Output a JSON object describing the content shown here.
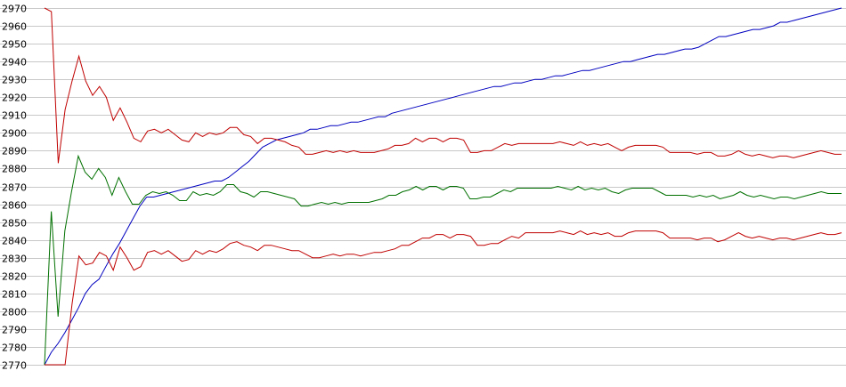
{
  "chart_data": {
    "type": "line",
    "title": "",
    "xlabel": "",
    "ylabel": "",
    "ylim": [
      2770,
      2970
    ],
    "y_ticks": [
      "2970",
      "2960",
      "2950",
      "2940",
      "2930",
      "2920",
      "2910",
      "2900",
      "2890",
      "2880",
      "2870",
      "2860",
      "2850",
      "2840",
      "2830",
      "2820",
      "2810",
      "2800",
      "2790",
      "2780",
      "2770"
    ],
    "grid": true,
    "legend": "none",
    "series": [
      {
        "color": "#0000c0",
        "values": [
          2770,
          2777,
          2782,
          2788,
          2795,
          2802,
          2810,
          2815,
          2818,
          2825,
          2832,
          2838,
          2845,
          2852,
          2859,
          2864,
          2864,
          2865,
          2866,
          2867,
          2868,
          2869,
          2870,
          2871,
          2872,
          2873,
          2873,
          2875,
          2878,
          2881,
          2884,
          2888,
          2892,
          2894,
          2896,
          2897,
          2898,
          2899,
          2900,
          2902,
          2902,
          2903,
          2904,
          2904,
          2905,
          2906,
          2906,
          2907,
          2908,
          2909,
          2909,
          2911,
          2912,
          2913,
          2914,
          2915,
          2916,
          2917,
          2918,
          2919,
          2920,
          2921,
          2922,
          2923,
          2924,
          2925,
          2926,
          2926,
          2927,
          2928,
          2928,
          2929,
          2930,
          2930,
          2931,
          2932,
          2932,
          2933,
          2934,
          2935,
          2935,
          2936,
          2937,
          2938,
          2939,
          2940,
          2940,
          2941,
          2942,
          2943,
          2944,
          2944,
          2945,
          2946,
          2947,
          2947,
          2948,
          2950,
          2952,
          2954,
          2954,
          2955,
          2956,
          2957,
          2958,
          2958,
          2959,
          2960,
          2962,
          2962,
          2963,
          2964,
          2965,
          2966,
          2967,
          2968,
          2969,
          2970
        ]
      },
      {
        "color": "#007000",
        "values": [
          2770,
          2856,
          2797,
          2845,
          2867,
          2887,
          2878,
          2874,
          2880,
          2875,
          2865,
          2875,
          2867,
          2860,
          2860,
          2865,
          2867,
          2866,
          2867,
          2865,
          2862,
          2862,
          2867,
          2865,
          2866,
          2865,
          2867,
          2871,
          2871,
          2867,
          2866,
          2864,
          2867,
          2867,
          2866,
          2865,
          2864,
          2863,
          2859,
          2859,
          2860,
          2861,
          2860,
          2861,
          2860,
          2861,
          2861,
          2861,
          2861,
          2862,
          2863,
          2865,
          2865,
          2867,
          2868,
          2870,
          2868,
          2870,
          2870,
          2868,
          2870,
          2870,
          2869,
          2863,
          2863,
          2864,
          2864,
          2866,
          2868,
          2867,
          2869,
          2869,
          2869,
          2869,
          2869,
          2869,
          2870,
          2869,
          2868,
          2870,
          2868,
          2869,
          2868,
          2869,
          2867,
          2866,
          2868,
          2869,
          2869,
          2869,
          2869,
          2867,
          2865,
          2865,
          2865,
          2865,
          2864,
          2865,
          2864,
          2865,
          2863,
          2864,
          2865,
          2867,
          2865,
          2864,
          2865,
          2864,
          2863,
          2864,
          2864,
          2863,
          2864,
          2865,
          2866,
          2867,
          2866,
          2866,
          2866
        ]
      },
      {
        "color": "#c00000",
        "values": [
          2970,
          2968,
          2883,
          2913,
          2929,
          2943,
          2929,
          2921,
          2926,
          2920,
          2907,
          2914,
          2906,
          2897,
          2895,
          2901,
          2902,
          2900,
          2902,
          2899,
          2896,
          2895,
          2900,
          2898,
          2900,
          2899,
          2900,
          2903,
          2903,
          2899,
          2898,
          2894,
          2897,
          2897,
          2896,
          2895,
          2893,
          2892,
          2888,
          2888,
          2889,
          2890,
          2889,
          2890,
          2889,
          2890,
          2889,
          2889,
          2889,
          2890,
          2891,
          2893,
          2893,
          2894,
          2897,
          2895,
          2897,
          2897,
          2895,
          2897,
          2897,
          2896,
          2889,
          2889,
          2890,
          2890,
          2892,
          2894,
          2893,
          2894,
          2894,
          2894,
          2894,
          2894,
          2894,
          2895,
          2894,
          2893,
          2895,
          2893,
          2894,
          2893,
          2894,
          2892,
          2890,
          2892,
          2893,
          2893,
          2893,
          2893,
          2892,
          2889,
          2889,
          2889,
          2889,
          2888,
          2889,
          2889,
          2887,
          2887,
          2888,
          2890,
          2888,
          2887,
          2888,
          2887,
          2886,
          2887,
          2887,
          2886,
          2887,
          2888,
          2889,
          2890,
          2889,
          2888,
          2888
        ]
      },
      {
        "color": "#c00000",
        "values": [
          2770,
          2770,
          2770,
          2770,
          2804,
          2831,
          2826,
          2827,
          2833,
          2831,
          2823,
          2836,
          2830,
          2823,
          2825,
          2833,
          2834,
          2832,
          2834,
          2831,
          2828,
          2829,
          2834,
          2832,
          2834,
          2833,
          2835,
          2838,
          2839,
          2837,
          2836,
          2834,
          2837,
          2837,
          2836,
          2835,
          2834,
          2834,
          2832,
          2830,
          2830,
          2831,
          2832,
          2831,
          2832,
          2832,
          2831,
          2832,
          2833,
          2833,
          2834,
          2835,
          2837,
          2837,
          2839,
          2841,
          2841,
          2843,
          2843,
          2841,
          2843,
          2843,
          2842,
          2837,
          2837,
          2838,
          2838,
          2840,
          2842,
          2841,
          2844,
          2844,
          2844,
          2844,
          2844,
          2845,
          2844,
          2843,
          2845,
          2843,
          2844,
          2843,
          2844,
          2842,
          2842,
          2844,
          2845,
          2845,
          2845,
          2845,
          2844,
          2841,
          2841,
          2841,
          2841,
          2840,
          2841,
          2841,
          2839,
          2840,
          2842,
          2844,
          2842,
          2841,
          2842,
          2841,
          2840,
          2841,
          2841,
          2840,
          2841,
          2842,
          2843,
          2844,
          2843,
          2843,
          2844
        ]
      }
    ]
  }
}
